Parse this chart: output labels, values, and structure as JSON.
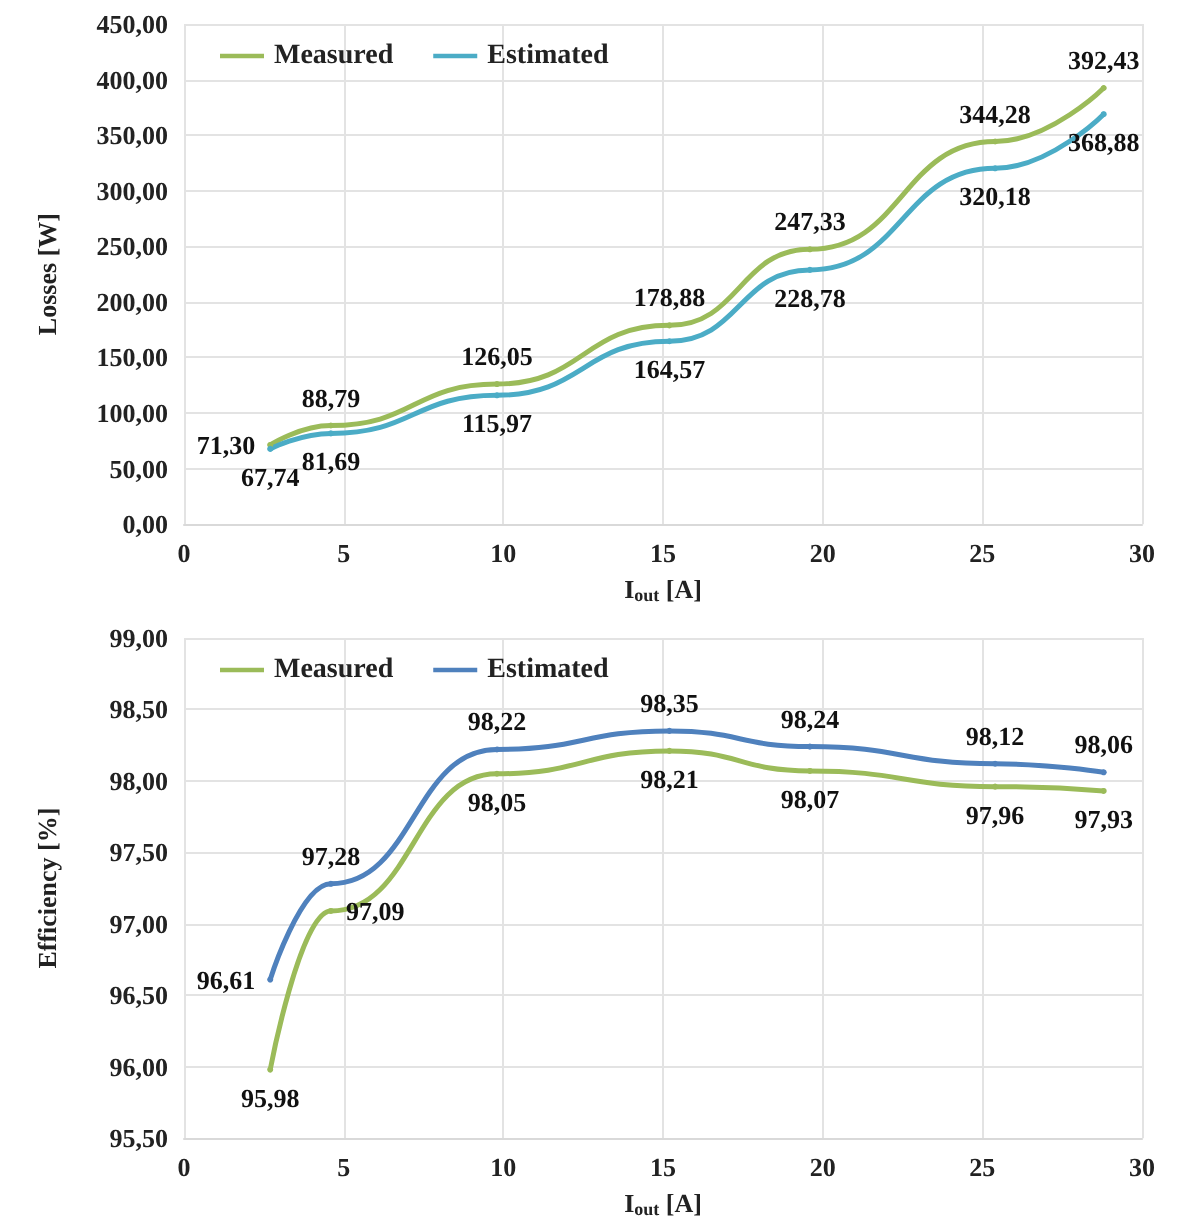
{
  "chart_data": [
    {
      "type": "line",
      "xlabel": "I$_{out}$ [A]",
      "ylabel": "Losses [W]",
      "xlim": [
        0,
        30
      ],
      "xticks": [
        0,
        5,
        10,
        15,
        20,
        25,
        30
      ],
      "ylim": [
        0,
        450
      ],
      "yticks": [
        {
          "value": 0,
          "label": "0,00"
        },
        {
          "value": 50,
          "label": "50,00"
        },
        {
          "value": 100,
          "label": "100,00"
        },
        {
          "value": 150,
          "label": "150,00"
        },
        {
          "value": 200,
          "label": "200,00"
        },
        {
          "value": 250,
          "label": "250,00"
        },
        {
          "value": 300,
          "label": "300,00"
        },
        {
          "value": 350,
          "label": "350,00"
        },
        {
          "value": 400,
          "label": "400,00"
        },
        {
          "value": 450,
          "label": "450,00"
        }
      ],
      "grid": true,
      "legend": "top left",
      "marker": "circle",
      "line_style": "solid",
      "series": [
        {
          "name": "Measured",
          "color": "#9bbb59",
          "x": [
            2.7,
            4.6,
            9.8,
            15.2,
            19.6,
            25.4,
            28.8
          ],
          "values": [
            71.3,
            88.79,
            126.05,
            178.88,
            247.33,
            344.28,
            392.43
          ],
          "value_labels": [
            "71,30",
            "88,79",
            "126,05",
            "178,88",
            "247,33",
            "344,28",
            "392,43"
          ]
        },
        {
          "name": "Estimated",
          "color": "#4bacc6",
          "x": [
            2.7,
            4.6,
            9.8,
            15.2,
            19.6,
            25.4,
            28.8
          ],
          "values": [
            67.74,
            81.69,
            115.97,
            164.57,
            228.78,
            320.18,
            368.88
          ],
          "value_labels": [
            "67,74",
            "81,69",
            "115,97",
            "164,57",
            "228,78",
            "320,18",
            "368,88"
          ]
        }
      ]
    },
    {
      "type": "line",
      "xlabel": "I$_{out}$ [A]",
      "ylabel": "Efficiency [%]",
      "xlim": [
        0,
        30
      ],
      "xticks": [
        0,
        5,
        10,
        15,
        20,
        25,
        30
      ],
      "ylim": [
        95.5,
        99
      ],
      "yticks": [
        {
          "value": 95.5,
          "label": "95,50"
        },
        {
          "value": 96,
          "label": "96,00"
        },
        {
          "value": 96.5,
          "label": "96,50"
        },
        {
          "value": 97,
          "label": "97,00"
        },
        {
          "value": 97.5,
          "label": "97,50"
        },
        {
          "value": 98,
          "label": "98,00"
        },
        {
          "value": 98.5,
          "label": "98,50"
        },
        {
          "value": 99,
          "label": "99,00"
        }
      ],
      "grid": true,
      "legend": "top left",
      "marker": "circle",
      "line_style": "solid",
      "series": [
        {
          "name": "Measured",
          "color": "#9bbb59",
          "x": [
            2.7,
            4.6,
            9.8,
            15.2,
            19.6,
            25.4,
            28.8
          ],
          "values": [
            95.98,
            97.09,
            98.05,
            98.21,
            98.07,
            97.96,
            97.93
          ],
          "value_labels": [
            "95,98",
            "97,09",
            "98,05",
            "98,21",
            "98,07",
            "97,96",
            "97,93"
          ]
        },
        {
          "name": "Estimated",
          "color": "#4f81bd",
          "x": [
            2.7,
            4.6,
            9.8,
            15.2,
            19.6,
            25.4,
            28.8
          ],
          "values": [
            96.61,
            97.28,
            98.22,
            98.35,
            98.24,
            98.12,
            98.06
          ],
          "value_labels": [
            "96,61",
            "97,28",
            "98,22",
            "98,35",
            "98,24",
            "98,12",
            "98,06"
          ]
        }
      ]
    }
  ]
}
